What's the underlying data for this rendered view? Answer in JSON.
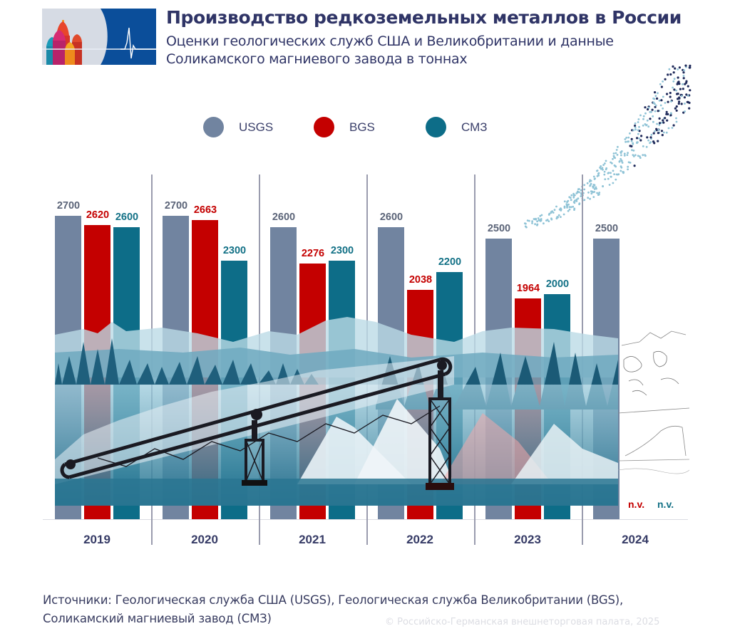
{
  "header": {
    "title": "Производство редкоземельных металлов в России",
    "subtitle": "Оценки геологических служб США и Великобритании и данные Соликамского магниевого завода в тоннах"
  },
  "legend": [
    {
      "label": "USGS",
      "color": "#7184a0"
    },
    {
      "label": "BGS",
      "color": "#c40000"
    },
    {
      "label": "СМЗ",
      "color": "#0d6d88"
    }
  ],
  "colors": {
    "usgs": "#7184a0",
    "usgs_label": "#5b6478",
    "bgs": "#c40000",
    "bgs_label": "#c40000",
    "smz": "#0d6d88",
    "smz_label": "#137186",
    "divider": "#9a9cae"
  },
  "missing_label": "n.v.",
  "footer": {
    "sources": "Источники: Геологическая служба США (USGS), Геологическая служба Великобритании (BGS), Соликамский магниевый завод (СМЗ)",
    "copyright": "© Российско-Германская внешнеторговая палата, 2025"
  },
  "chart_data": {
    "type": "bar",
    "title": "Производство редкоземельных металлов в России",
    "subtitle": "Оценки геологических служб США и Великобритании и данные Соликамского магниевого завода в тоннах",
    "xlabel": "",
    "ylabel": "тонны",
    "categories": [
      "2019",
      "2020",
      "2021",
      "2022",
      "2023",
      "2024"
    ],
    "series": [
      {
        "name": "USGS",
        "values": [
          2700,
          2700,
          2600,
          2600,
          2500,
          2500
        ]
      },
      {
        "name": "BGS",
        "values": [
          2620,
          2663,
          2276,
          2038,
          1964,
          null
        ]
      },
      {
        "name": "СМЗ",
        "values": [
          2600,
          2300,
          2300,
          2200,
          2000,
          null
        ]
      }
    ],
    "missing_annotation": "n.v.",
    "ylim": [
      0,
      2700
    ],
    "grid": false,
    "legend_position": "top",
    "source": "Источники: Геологическая служба США (USGS), Геологическая служба Великобритании (BGS), Соликамский магниевый завод (СМЗ)"
  }
}
